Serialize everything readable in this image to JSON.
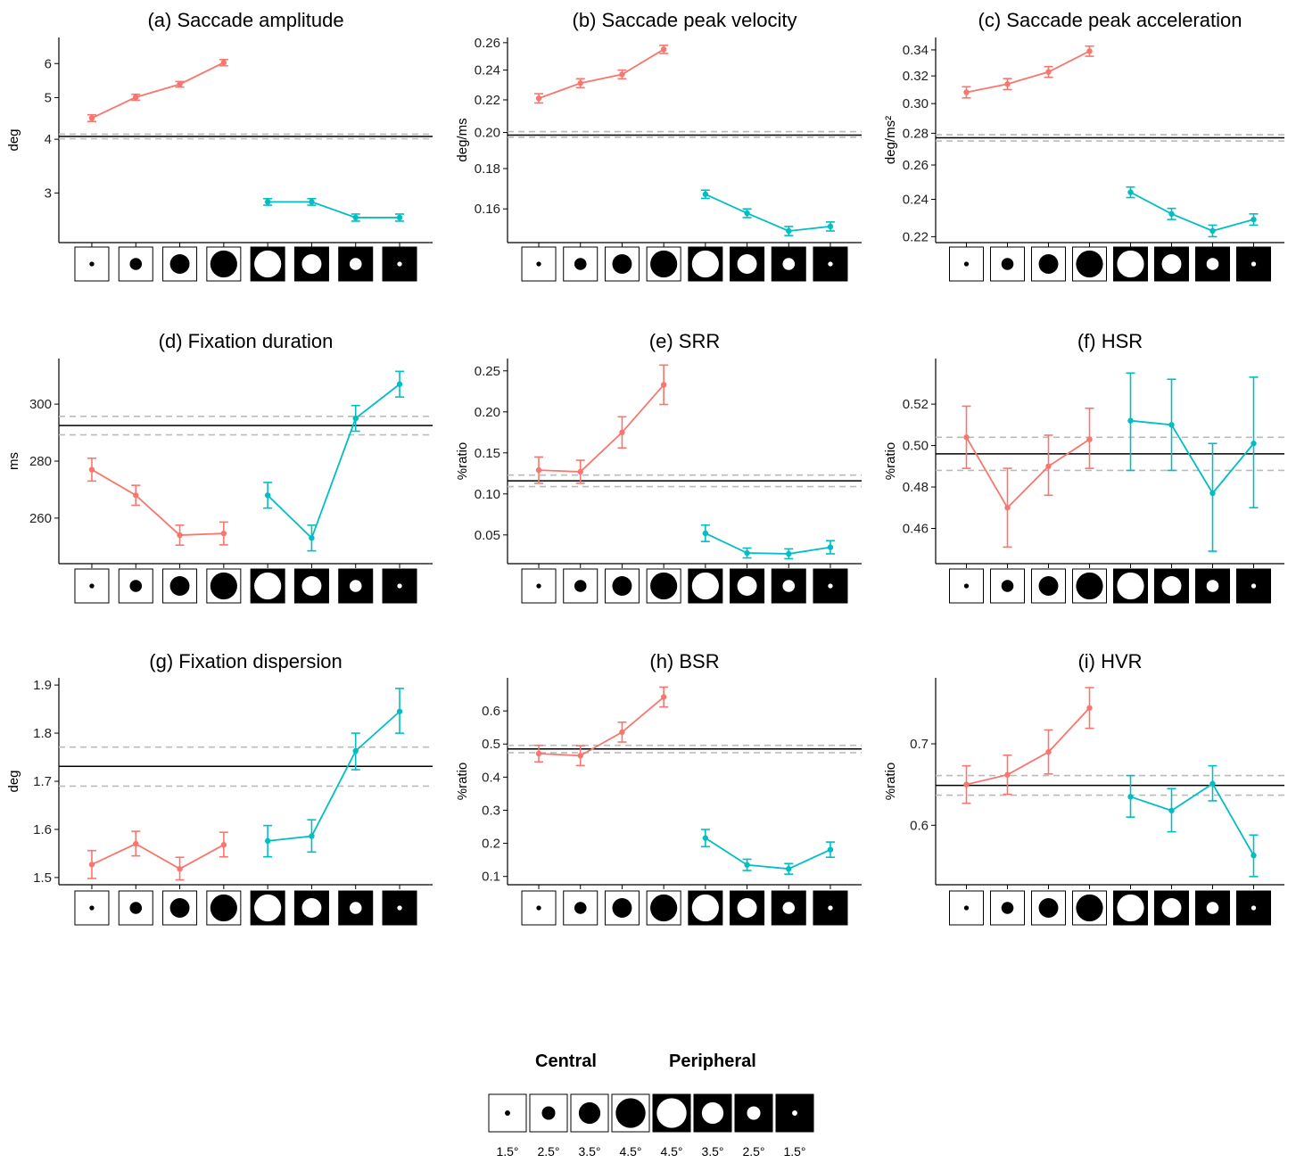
{
  "chart_data": [
    {
      "type": "line",
      "title": "(a) Saccade amplitude",
      "ylabel": "deg",
      "yscale": "log",
      "ylim": [
        2.3,
        6.9
      ],
      "yticks": [
        3,
        4,
        5,
        6
      ],
      "ytick_labels": [
        "3",
        "4",
        "5",
        "6"
      ],
      "grid": false,
      "reference": {
        "mean": 4.06,
        "lower": 4.01,
        "upper": 4.11
      },
      "series": [
        {
          "color": "#F8766D",
          "x": [
            1,
            2,
            3,
            4
          ],
          "y": [
            4.48,
            5.01,
            5.37,
            6.03
          ],
          "err_low": [
            4.4,
            4.93,
            5.29,
            5.93
          ],
          "err_high": [
            4.56,
            5.09,
            5.45,
            6.13
          ]
        },
        {
          "color": "#00BFC4",
          "x": [
            5,
            6,
            7,
            8
          ],
          "y": [
            2.86,
            2.86,
            2.63,
            2.63
          ],
          "err_low": [
            2.81,
            2.81,
            2.58,
            2.58
          ],
          "err_high": [
            2.91,
            2.91,
            2.68,
            2.68
          ]
        }
      ]
    },
    {
      "type": "line",
      "title": "(b) Saccade peak velocity",
      "ylabel": "deg/ms",
      "yscale": "log",
      "ylim": [
        0.145,
        0.264
      ],
      "yticks": [
        0.16,
        0.18,
        0.2,
        0.22,
        0.24,
        0.26
      ],
      "ytick_labels": [
        "0.16",
        "0.18",
        "0.20",
        "0.22",
        "0.24",
        "0.26"
      ],
      "grid": false,
      "reference": {
        "mean": 0.1985,
        "lower": 0.1972,
        "upper": 0.2005
      },
      "series": [
        {
          "color": "#F8766D",
          "x": [
            1,
            2,
            3,
            4
          ],
          "y": [
            0.221,
            0.231,
            0.237,
            0.255
          ],
          "err_low": [
            0.218,
            0.228,
            0.234,
            0.252
          ],
          "err_high": [
            0.224,
            0.234,
            0.24,
            0.258
          ]
        },
        {
          "color": "#00BFC4",
          "x": [
            5,
            6,
            7,
            8
          ],
          "y": [
            0.167,
            0.158,
            0.15,
            0.152
          ],
          "err_low": [
            0.165,
            0.156,
            0.148,
            0.15
          ],
          "err_high": [
            0.169,
            0.16,
            0.152,
            0.154
          ]
        }
      ]
    },
    {
      "type": "line",
      "title": "(c) Saccade peak acceleration",
      "ylabel": "deg/ms²",
      "yscale": "log",
      "ylim": [
        0.217,
        0.35
      ],
      "yticks": [
        0.22,
        0.24,
        0.26,
        0.28,
        0.3,
        0.32,
        0.34
      ],
      "ytick_labels": [
        "0.22",
        "0.24",
        "0.26",
        "0.28",
        "0.30",
        "0.32",
        "0.34"
      ],
      "grid": false,
      "reference": {
        "mean": 0.277,
        "lower": 0.275,
        "upper": 0.279
      },
      "series": [
        {
          "color": "#F8766D",
          "x": [
            1,
            2,
            3,
            4
          ],
          "y": [
            0.308,
            0.314,
            0.323,
            0.339
          ],
          "err_low": [
            0.304,
            0.31,
            0.319,
            0.335
          ],
          "err_high": [
            0.312,
            0.318,
            0.327,
            0.343
          ]
        },
        {
          "color": "#00BFC4",
          "x": [
            5,
            6,
            7,
            8
          ],
          "y": [
            0.244,
            0.232,
            0.223,
            0.229
          ],
          "err_low": [
            0.241,
            0.229,
            0.22,
            0.226
          ],
          "err_high": [
            0.247,
            0.235,
            0.226,
            0.232
          ]
        }
      ]
    },
    {
      "type": "line",
      "title": "(d) Fixation duration",
      "ylabel": "ms",
      "ylim": [
        244,
        316
      ],
      "yticks": [
        260,
        280,
        300
      ],
      "ytick_labels": [
        "260",
        "280",
        "300"
      ],
      "grid": false,
      "reference": {
        "mean": 292.5,
        "lower": 289.2,
        "upper": 295.7
      },
      "series": [
        {
          "color": "#F8766D",
          "x": [
            1,
            2,
            3,
            4
          ],
          "y": [
            277,
            268,
            254,
            254.6
          ],
          "err_low": [
            273,
            264.5,
            250.5,
            250.6
          ],
          "err_high": [
            281,
            271.5,
            257.5,
            258.6
          ]
        },
        {
          "color": "#00BFC4",
          "x": [
            5,
            6,
            7,
            8
          ],
          "y": [
            268,
            253,
            295,
            307
          ],
          "err_low": [
            263.5,
            248.5,
            290.5,
            302.5
          ],
          "err_high": [
            272.5,
            257.5,
            299.5,
            311.5
          ]
        }
      ]
    },
    {
      "type": "line",
      "title": "(e) SRR",
      "ylabel": "%ratio",
      "ylim": [
        0.015,
        0.265
      ],
      "yticks": [
        0.05,
        0.1,
        0.15,
        0.2,
        0.25
      ],
      "ytick_labels": [
        "0.05",
        "0.10",
        "0.15",
        "0.20",
        "0.25"
      ],
      "grid": false,
      "reference": {
        "mean": 0.116,
        "lower": 0.109,
        "upper": 0.123
      },
      "series": [
        {
          "color": "#F8766D",
          "x": [
            1,
            2,
            3,
            4
          ],
          "y": [
            0.129,
            0.127,
            0.175,
            0.233
          ],
          "err_low": [
            0.113,
            0.113,
            0.156,
            0.209
          ],
          "err_high": [
            0.145,
            0.141,
            0.194,
            0.257
          ]
        },
        {
          "color": "#00BFC4",
          "x": [
            5,
            6,
            7,
            8
          ],
          "y": [
            0.052,
            0.028,
            0.027,
            0.035
          ],
          "err_low": [
            0.042,
            0.022,
            0.021,
            0.027
          ],
          "err_high": [
            0.062,
            0.034,
            0.033,
            0.043
          ]
        }
      ]
    },
    {
      "type": "line",
      "title": "(f) HSR",
      "ylabel": "%ratio",
      "ylim": [
        0.443,
        0.542
      ],
      "yticks": [
        0.46,
        0.48,
        0.5,
        0.52
      ],
      "ytick_labels": [
        "0.46",
        "0.48",
        "0.50",
        "0.52"
      ],
      "grid": false,
      "reference": {
        "mean": 0.496,
        "lower": 0.488,
        "upper": 0.504
      },
      "series": [
        {
          "color": "#F8766D",
          "x": [
            1,
            2,
            3,
            4
          ],
          "y": [
            0.504,
            0.47,
            0.49,
            0.503
          ],
          "err_low": [
            0.489,
            0.451,
            0.476,
            0.489
          ],
          "err_high": [
            0.519,
            0.489,
            0.505,
            0.518
          ]
        },
        {
          "color": "#00BFC4",
          "x": [
            5,
            6,
            7,
            8
          ],
          "y": [
            0.512,
            0.51,
            0.477,
            0.501
          ],
          "err_low": [
            0.488,
            0.488,
            0.449,
            0.47
          ],
          "err_high": [
            0.535,
            0.532,
            0.501,
            0.533
          ]
        }
      ]
    },
    {
      "type": "line",
      "title": "(g) Fixation dispersion",
      "ylabel": "deg",
      "ylim": [
        1.485,
        1.915
      ],
      "yticks": [
        1.5,
        1.6,
        1.7,
        1.8,
        1.9
      ],
      "ytick_labels": [
        "1.5",
        "1.6",
        "1.7",
        "1.8",
        "1.9"
      ],
      "grid": false,
      "reference": {
        "mean": 1.731,
        "lower": 1.69,
        "upper": 1.771
      },
      "series": [
        {
          "color": "#F8766D",
          "x": [
            1,
            2,
            3,
            4
          ],
          "y": [
            1.527,
            1.57,
            1.518,
            1.568
          ],
          "err_low": [
            1.498,
            1.545,
            1.495,
            1.543
          ],
          "err_high": [
            1.556,
            1.596,
            1.542,
            1.594
          ]
        },
        {
          "color": "#00BFC4",
          "x": [
            5,
            6,
            7,
            8
          ],
          "y": [
            1.576,
            1.586,
            1.763,
            1.845
          ],
          "err_low": [
            1.543,
            1.553,
            1.724,
            1.8
          ],
          "err_high": [
            1.608,
            1.62,
            1.8,
            1.893
          ]
        }
      ]
    },
    {
      "type": "line",
      "title": "(h) BSR",
      "ylabel": "%ratio",
      "ylim": [
        0.075,
        0.7
      ],
      "yticks": [
        0.1,
        0.2,
        0.3,
        0.4,
        0.5,
        0.6
      ],
      "ytick_labels": [
        "0.1",
        "0.2",
        "0.3",
        "0.4",
        "0.5",
        "0.6"
      ],
      "grid": false,
      "reference": {
        "mean": 0.485,
        "lower": 0.474,
        "upper": 0.496
      },
      "series": [
        {
          "color": "#F8766D",
          "x": [
            1,
            2,
            3,
            4
          ],
          "y": [
            0.471,
            0.465,
            0.536,
            0.642
          ],
          "err_low": [
            0.446,
            0.435,
            0.506,
            0.612
          ],
          "err_high": [
            0.496,
            0.495,
            0.566,
            0.672
          ]
        },
        {
          "color": "#00BFC4",
          "x": [
            5,
            6,
            7,
            8
          ],
          "y": [
            0.216,
            0.135,
            0.123,
            0.181
          ],
          "err_low": [
            0.19,
            0.118,
            0.107,
            0.158
          ],
          "err_high": [
            0.242,
            0.152,
            0.139,
            0.204
          ]
        }
      ]
    },
    {
      "type": "line",
      "title": "(i) HVR",
      "ylabel": "%ratio",
      "ylim": [
        0.527,
        0.781
      ],
      "yticks": [
        0.6,
        0.7
      ],
      "ytick_labels": [
        "0.6",
        "0.7"
      ],
      "grid": false,
      "reference": {
        "mean": 0.649,
        "lower": 0.637,
        "upper": 0.661
      },
      "series": [
        {
          "color": "#F8766D",
          "x": [
            1,
            2,
            3,
            4
          ],
          "y": [
            0.65,
            0.662,
            0.69,
            0.744
          ],
          "err_low": [
            0.627,
            0.638,
            0.663,
            0.719
          ],
          "err_high": [
            0.673,
            0.686,
            0.717,
            0.769
          ]
        },
        {
          "color": "#00BFC4",
          "x": [
            5,
            6,
            7,
            8
          ],
          "y": [
            0.635,
            0.618,
            0.651,
            0.563
          ],
          "err_low": [
            0.61,
            0.592,
            0.63,
            0.537
          ],
          "err_high": [
            0.661,
            0.645,
            0.673,
            0.588
          ]
        }
      ]
    }
  ],
  "conditions": [
    {
      "background": "white",
      "disc": "black",
      "size_deg": 1.5
    },
    {
      "background": "white",
      "disc": "black",
      "size_deg": 2.5
    },
    {
      "background": "white",
      "disc": "black",
      "size_deg": 3.5
    },
    {
      "background": "white",
      "disc": "black",
      "size_deg": 4.5
    },
    {
      "background": "black",
      "disc": "white",
      "size_deg": 4.5
    },
    {
      "background": "black",
      "disc": "white",
      "size_deg": 3.5
    },
    {
      "background": "black",
      "disc": "white",
      "size_deg": 2.5
    },
    {
      "background": "black",
      "disc": "white",
      "size_deg": 1.5
    }
  ],
  "legend": {
    "central_label": "Central",
    "peripheral_label": "Peripheral",
    "degree_labels": [
      "1.5°",
      "2.5°",
      "3.5°",
      "4.5°",
      "4.5°",
      "3.5°",
      "2.5°",
      "1.5°"
    ]
  },
  "colors": {
    "central": "#F8766D",
    "peripheral": "#00BFC4",
    "reference": "#000000",
    "reference_ci": "#BBBBBB"
  }
}
